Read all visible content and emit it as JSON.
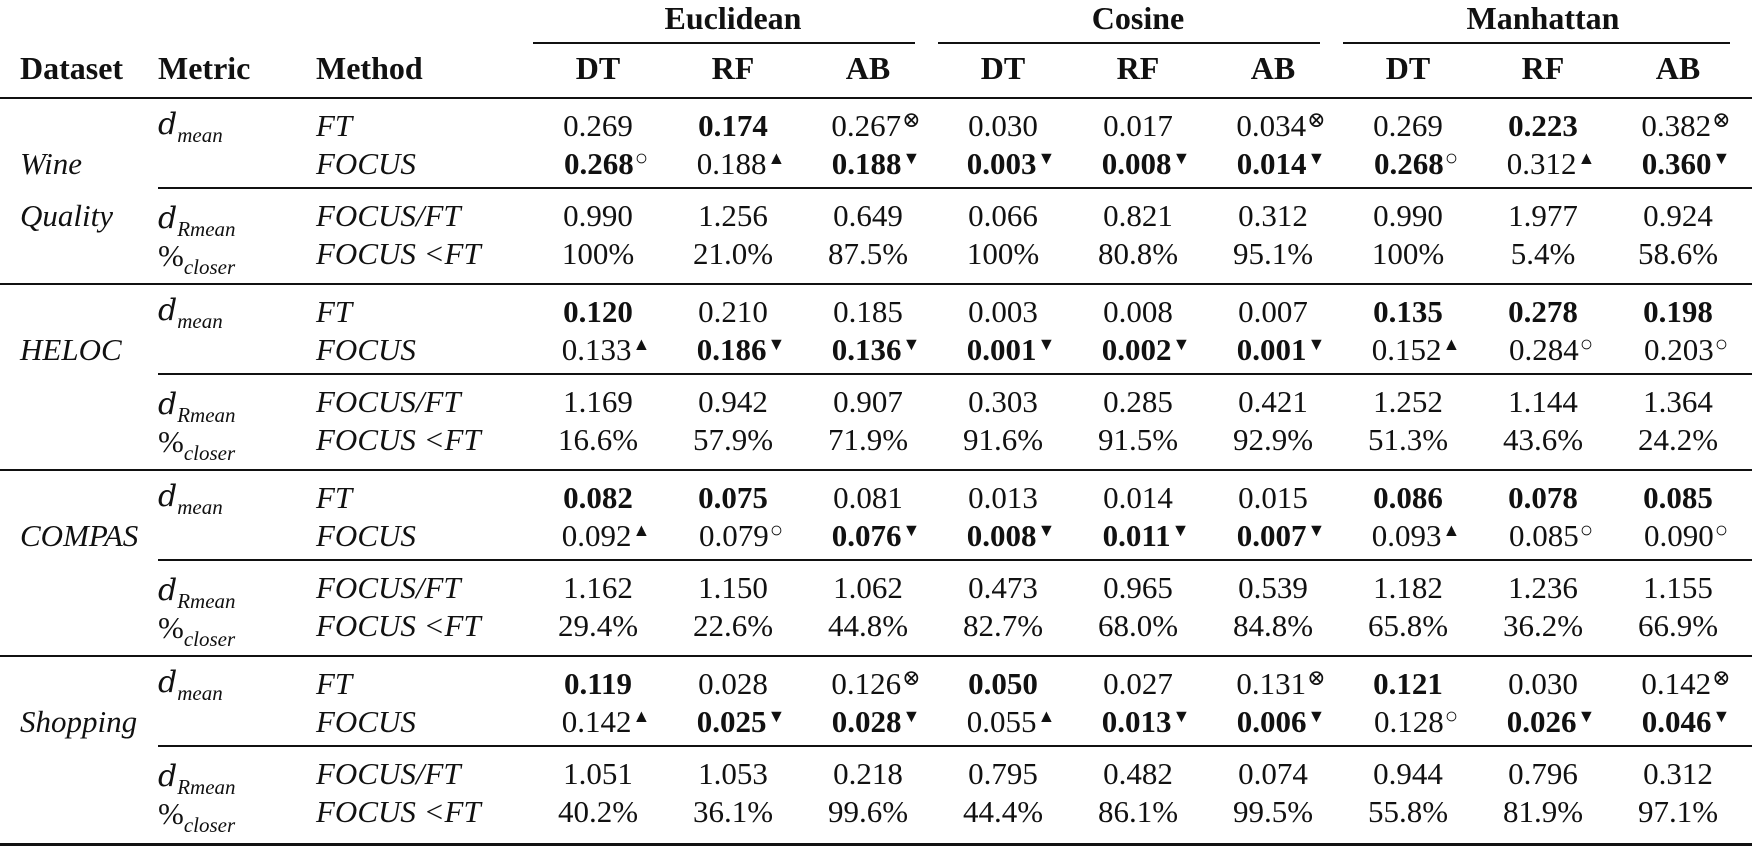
{
  "header": {
    "dataset": "Dataset",
    "metric": "Metric",
    "method": "Method",
    "groups": [
      "Euclidean",
      "Cosine",
      "Manhattan"
    ],
    "models": [
      "DT",
      "RF",
      "AB"
    ]
  },
  "metrics": {
    "d_main": "d",
    "d_mean_sub": "mean",
    "d_rmean_sub": "Rmean",
    "pct_main": "%",
    "pct_sub": "closer"
  },
  "methods": {
    "ft": "FT",
    "focus": "FOCUS",
    "ratio": "FOCUS/FT",
    "closer": "FOCUS <FT"
  },
  "marks": {
    "up": "▲",
    "down": "▼",
    "same": "○",
    "error": "⊗"
  },
  "datasets": [
    {
      "name_lines": [
        "Wine",
        "Quality"
      ],
      "ft": [
        {
          "v": "0.269",
          "b": false,
          "m": ""
        },
        {
          "v": "0.174",
          "b": true,
          "m": ""
        },
        {
          "v": "0.267",
          "b": false,
          "m": "error"
        },
        {
          "v": "0.030",
          "b": false,
          "m": ""
        },
        {
          "v": "0.017",
          "b": false,
          "m": ""
        },
        {
          "v": "0.034",
          "b": false,
          "m": "error"
        },
        {
          "v": "0.269",
          "b": false,
          "m": ""
        },
        {
          "v": "0.223",
          "b": true,
          "m": ""
        },
        {
          "v": "0.382",
          "b": false,
          "m": "error"
        }
      ],
      "focus": [
        {
          "v": "0.268",
          "b": true,
          "m": "same"
        },
        {
          "v": "0.188",
          "b": false,
          "m": "up"
        },
        {
          "v": "0.188",
          "b": true,
          "m": "down"
        },
        {
          "v": "0.003",
          "b": true,
          "m": "down"
        },
        {
          "v": "0.008",
          "b": true,
          "m": "down"
        },
        {
          "v": "0.014",
          "b": true,
          "m": "down"
        },
        {
          "v": "0.268",
          "b": true,
          "m": "same"
        },
        {
          "v": "0.312",
          "b": false,
          "m": "up"
        },
        {
          "v": "0.360",
          "b": true,
          "m": "down"
        }
      ],
      "ratio": [
        "0.990",
        "1.256",
        "0.649",
        "0.066",
        "0.821",
        "0.312",
        "0.990",
        "1.977",
        "0.924"
      ],
      "closer": [
        "100%",
        "21.0%",
        "87.5%",
        "100%",
        "80.8%",
        "95.1%",
        "100%",
        "5.4%",
        "58.6%"
      ]
    },
    {
      "name_lines": [
        "HELOC"
      ],
      "ft": [
        {
          "v": "0.120",
          "b": true,
          "m": ""
        },
        {
          "v": "0.210",
          "b": false,
          "m": ""
        },
        {
          "v": "0.185",
          "b": false,
          "m": ""
        },
        {
          "v": "0.003",
          "b": false,
          "m": ""
        },
        {
          "v": "0.008",
          "b": false,
          "m": ""
        },
        {
          "v": "0.007",
          "b": false,
          "m": ""
        },
        {
          "v": "0.135",
          "b": true,
          "m": ""
        },
        {
          "v": "0.278",
          "b": true,
          "m": ""
        },
        {
          "v": "0.198",
          "b": true,
          "m": ""
        }
      ],
      "focus": [
        {
          "v": "0.133",
          "b": false,
          "m": "up"
        },
        {
          "v": "0.186",
          "b": true,
          "m": "down"
        },
        {
          "v": "0.136",
          "b": true,
          "m": "down"
        },
        {
          "v": "0.001",
          "b": true,
          "m": "down"
        },
        {
          "v": "0.002",
          "b": true,
          "m": "down"
        },
        {
          "v": "0.001",
          "b": true,
          "m": "down"
        },
        {
          "v": "0.152",
          "b": false,
          "m": "up"
        },
        {
          "v": "0.284",
          "b": false,
          "m": "same"
        },
        {
          "v": "0.203",
          "b": false,
          "m": "same"
        }
      ],
      "ratio": [
        "1.169",
        "0.942",
        "0.907",
        "0.303",
        "0.285",
        "0.421",
        "1.252",
        "1.144",
        "1.364"
      ],
      "closer": [
        "16.6%",
        "57.9%",
        "71.9%",
        "91.6%",
        "91.5%",
        "92.9%",
        "51.3%",
        "43.6%",
        "24.2%"
      ]
    },
    {
      "name_lines": [
        "COMPAS"
      ],
      "ft": [
        {
          "v": "0.082",
          "b": true,
          "m": ""
        },
        {
          "v": "0.075",
          "b": true,
          "m": ""
        },
        {
          "v": "0.081",
          "b": false,
          "m": ""
        },
        {
          "v": "0.013",
          "b": false,
          "m": ""
        },
        {
          "v": "0.014",
          "b": false,
          "m": ""
        },
        {
          "v": "0.015",
          "b": false,
          "m": ""
        },
        {
          "v": "0.086",
          "b": true,
          "m": ""
        },
        {
          "v": "0.078",
          "b": true,
          "m": ""
        },
        {
          "v": "0.085",
          "b": true,
          "m": ""
        }
      ],
      "focus": [
        {
          "v": "0.092",
          "b": false,
          "m": "up"
        },
        {
          "v": "0.079",
          "b": false,
          "m": "same"
        },
        {
          "v": "0.076",
          "b": true,
          "m": "down"
        },
        {
          "v": "0.008",
          "b": true,
          "m": "down"
        },
        {
          "v": "0.011",
          "b": true,
          "m": "down"
        },
        {
          "v": "0.007",
          "b": true,
          "m": "down"
        },
        {
          "v": "0.093",
          "b": false,
          "m": "up"
        },
        {
          "v": "0.085",
          "b": false,
          "m": "same"
        },
        {
          "v": "0.090",
          "b": false,
          "m": "same"
        }
      ],
      "ratio": [
        "1.162",
        "1.150",
        "1.062",
        "0.473",
        "0.965",
        "0.539",
        "1.182",
        "1.236",
        "1.155"
      ],
      "closer": [
        "29.4%",
        "22.6%",
        "44.8%",
        "82.7%",
        "68.0%",
        "84.8%",
        "65.8%",
        "36.2%",
        "66.9%"
      ]
    },
    {
      "name_lines": [
        "Shopping"
      ],
      "ft": [
        {
          "v": "0.119",
          "b": true,
          "m": ""
        },
        {
          "v": "0.028",
          "b": false,
          "m": ""
        },
        {
          "v": "0.126",
          "b": false,
          "m": "error"
        },
        {
          "v": "0.050",
          "b": true,
          "m": ""
        },
        {
          "v": "0.027",
          "b": false,
          "m": ""
        },
        {
          "v": "0.131",
          "b": false,
          "m": "error"
        },
        {
          "v": "0.121",
          "b": true,
          "m": ""
        },
        {
          "v": "0.030",
          "b": false,
          "m": ""
        },
        {
          "v": "0.142",
          "b": false,
          "m": "error"
        }
      ],
      "focus": [
        {
          "v": "0.142",
          "b": false,
          "m": "up"
        },
        {
          "v": "0.025",
          "b": true,
          "m": "down"
        },
        {
          "v": "0.028",
          "b": true,
          "m": "down"
        },
        {
          "v": "0.055",
          "b": false,
          "m": "up"
        },
        {
          "v": "0.013",
          "b": true,
          "m": "down"
        },
        {
          "v": "0.006",
          "b": true,
          "m": "down"
        },
        {
          "v": "0.128",
          "b": false,
          "m": "same"
        },
        {
          "v": "0.026",
          "b": true,
          "m": "down"
        },
        {
          "v": "0.046",
          "b": true,
          "m": "down"
        }
      ],
      "ratio": [
        "1.051",
        "1.053",
        "0.218",
        "0.795",
        "0.482",
        "0.074",
        "0.944",
        "0.796",
        "0.312"
      ],
      "closer": [
        "40.2%",
        "36.1%",
        "99.6%",
        "44.4%",
        "86.1%",
        "99.5%",
        "55.8%",
        "81.9%",
        "97.1%"
      ]
    }
  ]
}
